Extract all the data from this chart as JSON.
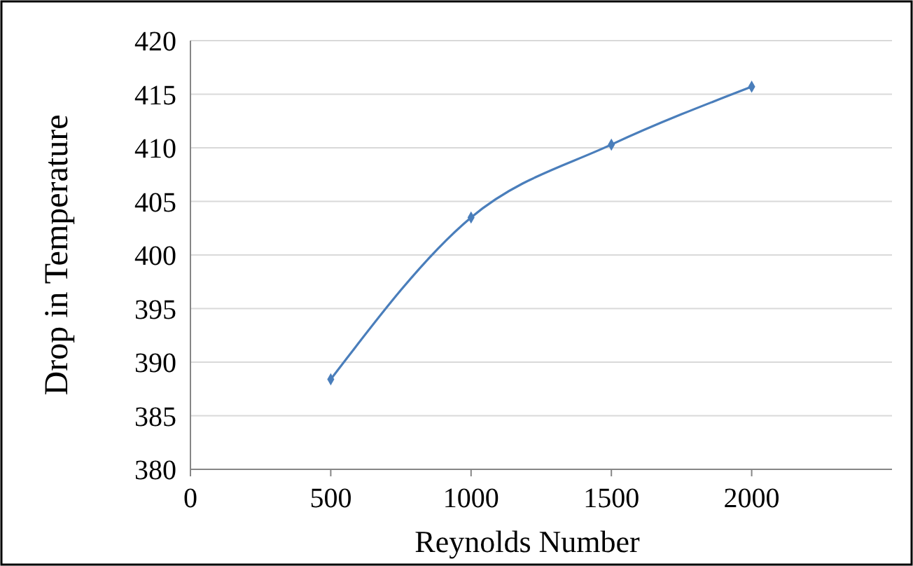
{
  "chart_data": {
    "type": "line",
    "xlabel": "Reynolds Number",
    "ylabel": "Drop in Temperature",
    "x": [
      500,
      1000,
      1500,
      2000
    ],
    "series": [
      {
        "color": "#4a7ebb",
        "values": [
          388.4,
          403.5,
          410.3,
          415.7
        ]
      }
    ],
    "xlim": [
      0,
      2500
    ],
    "xticks": [
      0,
      500,
      1000,
      1500,
      2000
    ],
    "ylim": [
      380,
      420
    ],
    "yticks": [
      380,
      385,
      390,
      395,
      400,
      405,
      410,
      415,
      420
    ],
    "grid": "y",
    "marker": "diamond",
    "line_style": "solid"
  }
}
